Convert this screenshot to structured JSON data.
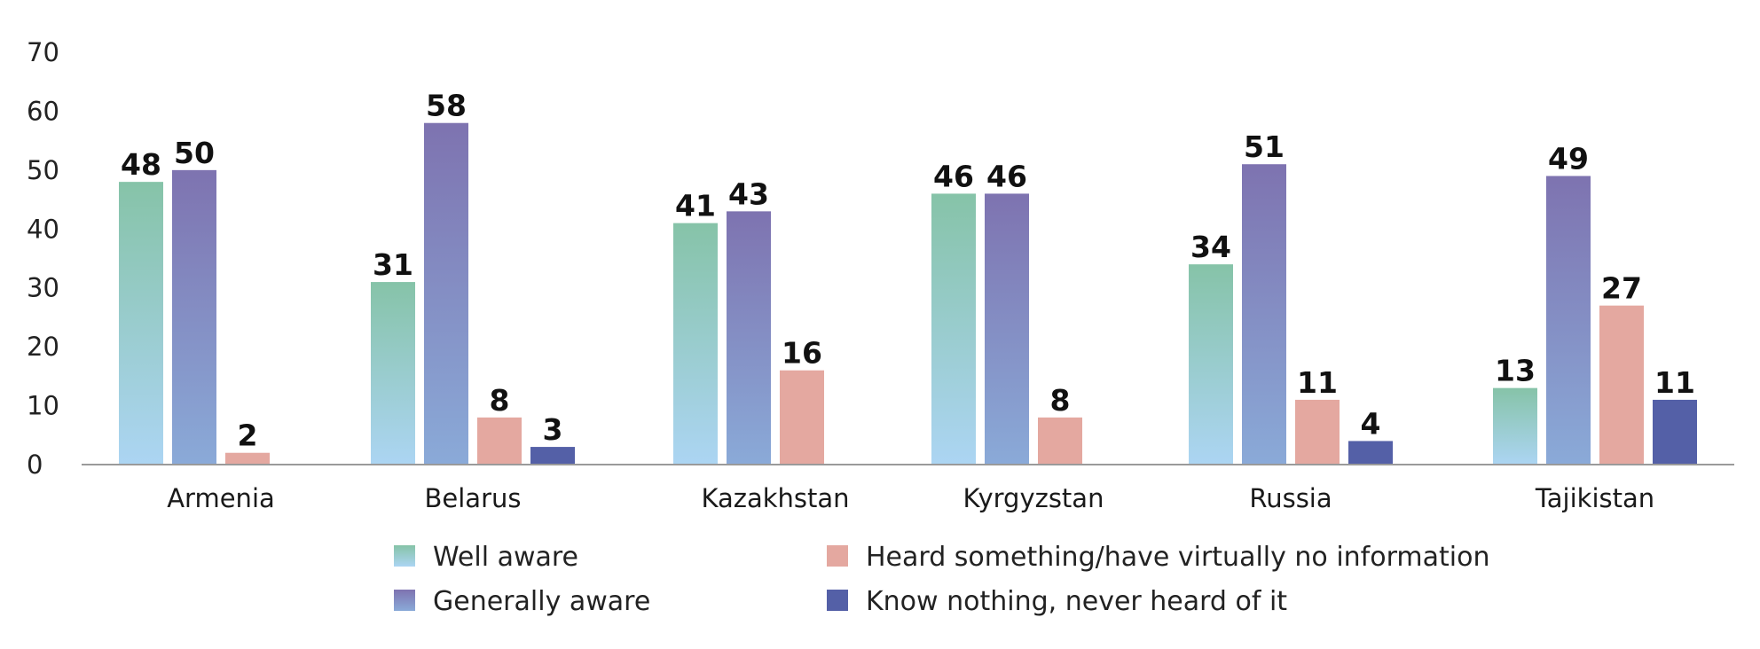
{
  "chart_data": {
    "type": "bar",
    "categories": [
      "Armenia",
      "Belarus",
      "Kazakhstan",
      "Kyrgyzstan",
      "Russia",
      "Tajikistan"
    ],
    "series": [
      {
        "name": "Well aware",
        "values": [
          48,
          31,
          41,
          46,
          34,
          13
        ],
        "color_top": "#86c3a8",
        "color_bottom": "#acd5f3"
      },
      {
        "name": "Generally aware",
        "values": [
          50,
          58,
          43,
          46,
          51,
          49
        ],
        "color_top": "#7e73b0",
        "color_bottom": "#8aaad8"
      },
      {
        "name": "Heard something/have virtually no information",
        "values": [
          2,
          8,
          16,
          8,
          11,
          27
        ],
        "color": "#e4a8a0"
      },
      {
        "name": "Know nothing, never heard of it",
        "values": [
          null,
          3,
          null,
          null,
          4,
          11
        ],
        "color": "#5460a7"
      }
    ],
    "yticks": [
      "0",
      "10",
      "20",
      "30",
      "40",
      "50",
      "60",
      "70"
    ],
    "ylim": [
      0,
      70
    ],
    "grid": false,
    "legend_position": "bottom"
  }
}
